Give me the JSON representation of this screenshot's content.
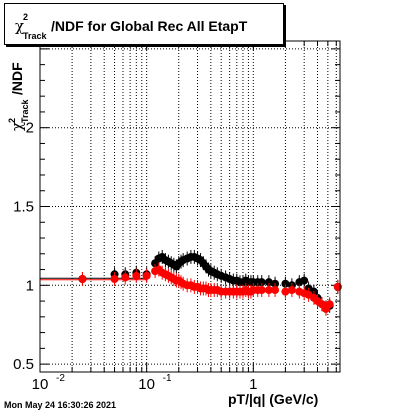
{
  "chart_data": {
    "type": "scatter",
    "title": "/NDF for Global Rec All EtapT",
    "title_symbol": "χ",
    "title_sup": "2",
    "title_sub": "Track",
    "ylabel": "/NDF",
    "ylabel_symbol": "χ",
    "ylabel_sup": "2",
    "ylabel_sub": "Track",
    "xlabel": "pT/|q| (GeV/c)",
    "xscale": "log",
    "xlim": [
      0.01,
      6.5
    ],
    "ylim": [
      0.45,
      2.55
    ],
    "x_ticks": [
      {
        "value": 0.01,
        "base": "10",
        "exp": "-2"
      },
      {
        "value": 0.1,
        "base": "10",
        "exp": "-1"
      },
      {
        "value": 1,
        "base": "1",
        "exp": ""
      }
    ],
    "y_ticks": [
      "0.5",
      "1",
      "1.5",
      "2"
    ],
    "grid": true,
    "series": [
      {
        "color": "#000000",
        "points": [
          [
            0.025,
            1.04
          ],
          [
            0.05,
            1.07
          ],
          [
            0.063,
            1.07
          ],
          [
            0.08,
            1.08
          ],
          [
            0.1,
            1.07
          ],
          [
            0.12,
            1.14
          ],
          [
            0.13,
            1.17
          ],
          [
            0.14,
            1.18
          ],
          [
            0.15,
            1.16
          ],
          [
            0.16,
            1.15
          ],
          [
            0.17,
            1.14
          ],
          [
            0.18,
            1.13
          ],
          [
            0.19,
            1.12
          ],
          [
            0.2,
            1.14
          ],
          [
            0.21,
            1.15
          ],
          [
            0.22,
            1.16
          ],
          [
            0.24,
            1.17
          ],
          [
            0.26,
            1.18
          ],
          [
            0.28,
            1.18
          ],
          [
            0.3,
            1.17
          ],
          [
            0.32,
            1.16
          ],
          [
            0.34,
            1.14
          ],
          [
            0.36,
            1.12
          ],
          [
            0.38,
            1.1
          ],
          [
            0.4,
            1.09
          ],
          [
            0.43,
            1.08
          ],
          [
            0.46,
            1.07
          ],
          [
            0.5,
            1.06
          ],
          [
            0.55,
            1.05
          ],
          [
            0.6,
            1.04
          ],
          [
            0.65,
            1.03
          ],
          [
            0.7,
            1.03
          ],
          [
            0.75,
            1.02
          ],
          [
            0.8,
            1.02
          ],
          [
            0.85,
            1.03
          ],
          [
            0.9,
            1.02
          ],
          [
            0.95,
            1.02
          ],
          [
            1.0,
            1.02
          ],
          [
            1.1,
            1.02
          ],
          [
            1.2,
            1.02
          ],
          [
            1.4,
            1.02
          ],
          [
            1.6,
            1.01
          ],
          [
            2.0,
            1.01
          ],
          [
            2.3,
            1.0
          ],
          [
            2.7,
            1.02
          ],
          [
            3.0,
            1.03
          ],
          [
            3.3,
            0.98
          ],
          [
            3.7,
            0.96
          ],
          [
            4.0,
            0.92
          ],
          [
            4.4,
            0.88
          ],
          [
            4.8,
            0.86
          ],
          [
            5.2,
            0.87
          ],
          [
            6.2,
            0.99
          ]
        ]
      },
      {
        "color": "#ff0000",
        "points": [
          [
            0.025,
            1.04
          ],
          [
            0.05,
            1.04
          ],
          [
            0.063,
            1.05
          ],
          [
            0.08,
            1.06
          ],
          [
            0.1,
            1.06
          ],
          [
            0.12,
            1.09
          ],
          [
            0.13,
            1.1
          ],
          [
            0.14,
            1.08
          ],
          [
            0.15,
            1.07
          ],
          [
            0.16,
            1.06
          ],
          [
            0.17,
            1.05
          ],
          [
            0.18,
            1.04
          ],
          [
            0.19,
            1.03
          ],
          [
            0.2,
            1.03
          ],
          [
            0.21,
            1.02
          ],
          [
            0.22,
            1.01
          ],
          [
            0.24,
            1.0
          ],
          [
            0.26,
            1.0
          ],
          [
            0.28,
            0.99
          ],
          [
            0.3,
            0.99
          ],
          [
            0.32,
            0.98
          ],
          [
            0.34,
            0.98
          ],
          [
            0.36,
            0.98
          ],
          [
            0.38,
            0.97
          ],
          [
            0.4,
            0.97
          ],
          [
            0.43,
            0.97
          ],
          [
            0.46,
            0.97
          ],
          [
            0.5,
            0.96
          ],
          [
            0.55,
            0.96
          ],
          [
            0.6,
            0.96
          ],
          [
            0.65,
            0.96
          ],
          [
            0.7,
            0.96
          ],
          [
            0.75,
            0.96
          ],
          [
            0.8,
            0.96
          ],
          [
            0.85,
            0.97
          ],
          [
            0.9,
            0.96
          ],
          [
            0.95,
            0.96
          ],
          [
            1.0,
            0.97
          ],
          [
            1.1,
            0.97
          ],
          [
            1.2,
            0.97
          ],
          [
            1.4,
            0.97
          ],
          [
            1.6,
            0.97
          ],
          [
            2.0,
            0.96
          ],
          [
            2.3,
            0.97
          ],
          [
            2.7,
            0.96
          ],
          [
            3.0,
            0.95
          ],
          [
            3.3,
            0.94
          ],
          [
            3.7,
            0.92
          ],
          [
            4.0,
            0.9
          ],
          [
            4.4,
            0.88
          ],
          [
            4.8,
            0.85
          ],
          [
            5.2,
            0.88
          ],
          [
            6.2,
            0.99
          ]
        ]
      }
    ]
  },
  "page": {
    "datestamp": "Mon May 24 16:30:26 2021"
  }
}
